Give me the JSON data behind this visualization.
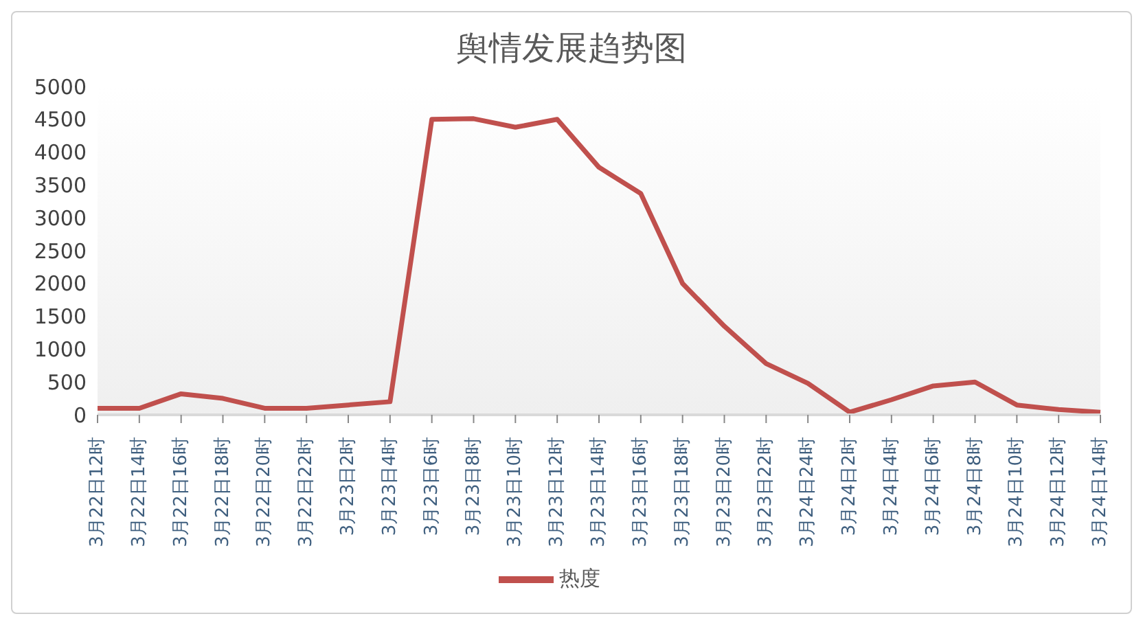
{
  "chart_data": {
    "type": "line",
    "title": "舆情发展趋势图",
    "categories": [
      "3月22日12时",
      "3月22日14时",
      "3月22日16时",
      "3月22日18时",
      "3月22日20时",
      "3月22日22时",
      "3月23日2时",
      "3月23日4时",
      "3月23日6时",
      "3月23日8时",
      "3月23日10时",
      "3月23日12时",
      "3月23日14时",
      "3月23日16时",
      "3月23日18时",
      "3月23日20时",
      "3月23日22时",
      "3月24日24时",
      "3月24日2时",
      "3月24日4时",
      "3月24日6时",
      "3月24日8时",
      "3月24日10时",
      "3月24日12时",
      "3月24日14时"
    ],
    "series": [
      {
        "name": "热度",
        "color": "#c0504d",
        "values": [
          100,
          100,
          320,
          250,
          100,
          100,
          150,
          200,
          4500,
          4510,
          4380,
          4500,
          3770,
          3370,
          2000,
          1350,
          780,
          480,
          40,
          230,
          440,
          500,
          150,
          80,
          40
        ]
      }
    ],
    "ylim": [
      0,
      5000
    ],
    "yticks": [
      0,
      500,
      1000,
      1500,
      2000,
      2500,
      3000,
      3500,
      4000,
      4500,
      5000
    ],
    "grid": false,
    "legend": "bottom",
    "marker": "none",
    "line_style": "solid"
  }
}
